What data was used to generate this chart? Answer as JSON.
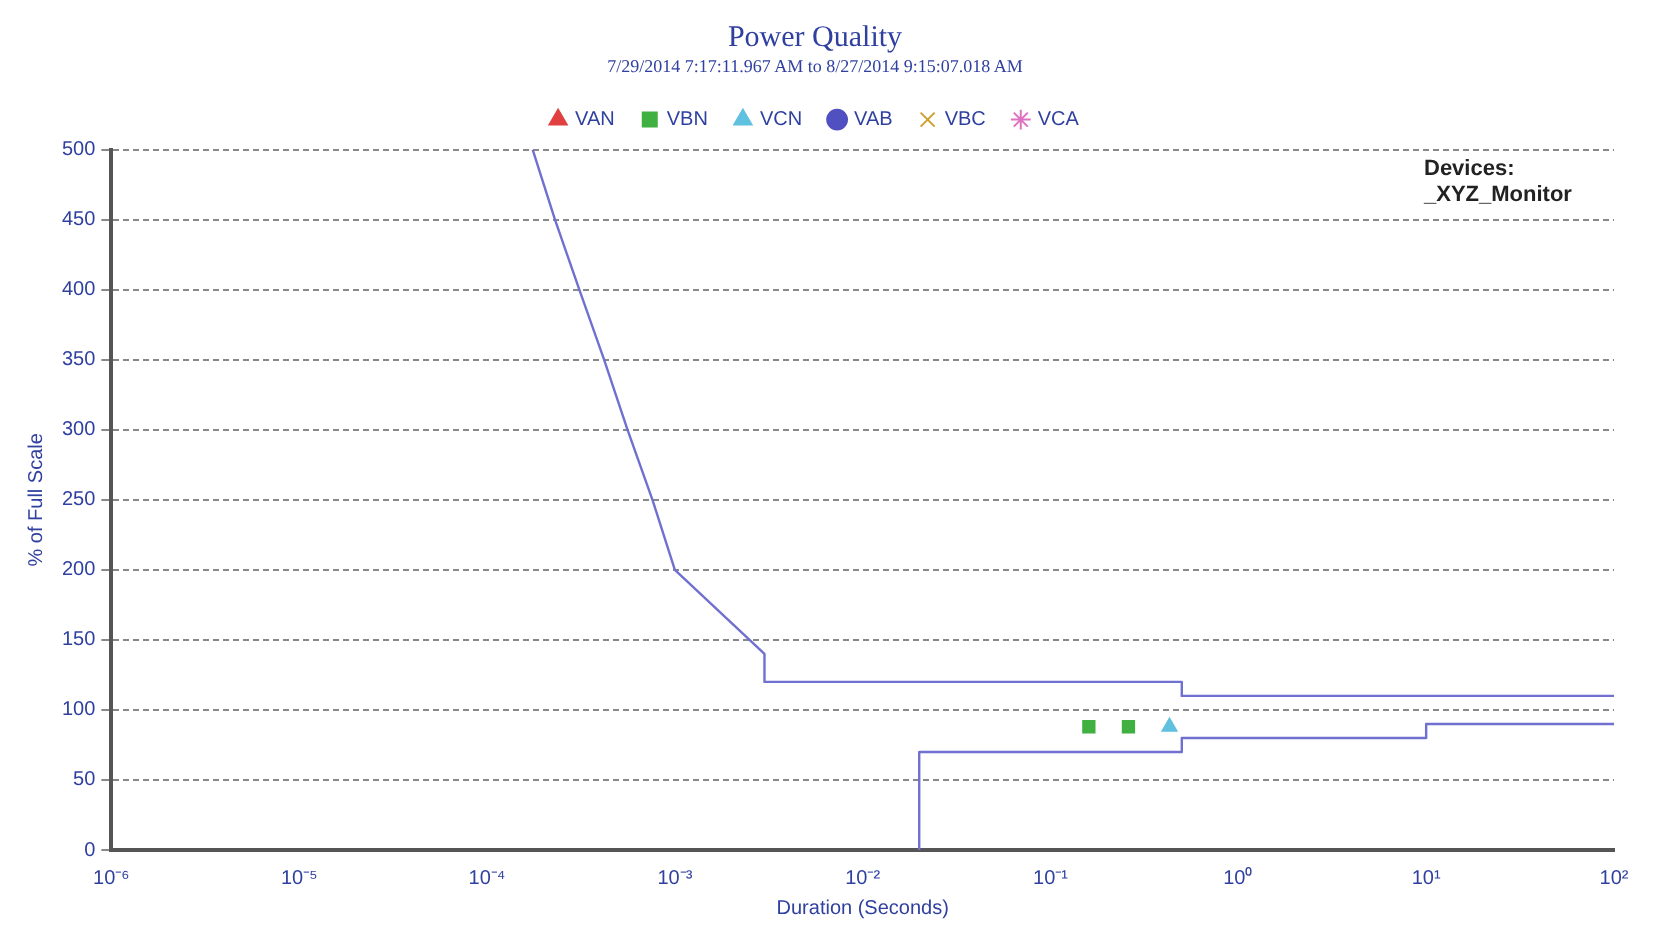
{
  "chart_data": {
    "type": "line",
    "title": "Power Quality",
    "subtitle": "7/29/2014 7:17:11.967 AM to 8/27/2014 9:15:07.018 AM",
    "xlabel": "Duration (Seconds)",
    "ylabel": "% of Full Scale",
    "log": "x",
    "grid": "y",
    "legend": "top",
    "annotations": [
      "Devices:",
      "_XYZ_Monitor"
    ],
    "xlim": [
      1e-06,
      100
    ],
    "xticks": [
      {
        "value": 1e-06,
        "label": "10⁻⁶"
      },
      {
        "value": 1e-05,
        "label": "10⁻⁵"
      },
      {
        "value": 0.0001,
        "label": "10⁻⁴"
      },
      {
        "value": 0.001,
        "label": "10⁻³"
      },
      {
        "value": 0.01,
        "label": "10⁻²"
      },
      {
        "value": 0.1,
        "label": "10⁻¹"
      },
      {
        "value": 1,
        "label": "10⁰"
      },
      {
        "value": 10,
        "label": "10¹"
      },
      {
        "value": 100,
        "label": "10²"
      }
    ],
    "ylim": [
      0,
      500
    ],
    "yticks": [
      0,
      50,
      100,
      150,
      200,
      250,
      300,
      350,
      400,
      450,
      500
    ],
    "series": [
      {
        "color": "#7070d0",
        "marker": "none",
        "line_style": "solid",
        "x": [
          0.000175,
          0.00023,
          0.00031,
          0.00042,
          0.00056,
          0.00076,
          0.001,
          0.003,
          0.003,
          0.5,
          0.5,
          100
        ],
        "values": [
          500,
          450,
          400,
          350,
          300,
          250,
          200,
          140,
          120,
          120,
          110,
          110
        ]
      },
      {
        "color": "#7070d0",
        "marker": "none",
        "line_style": "solid",
        "x": [
          0.02,
          0.02,
          0.5,
          0.5,
          10,
          10,
          100
        ],
        "values": [
          0,
          70,
          70,
          80,
          80,
          90,
          90
        ]
      },
      {
        "type": "scatter",
        "name": "VAN",
        "color": "#e04040",
        "marker": "triangle"
      },
      {
        "type": "scatter",
        "name": "VBN",
        "color": "#40b040",
        "marker": "square",
        "x": [
          0.16,
          0.26
        ],
        "values": [
          88,
          88
        ]
      },
      {
        "type": "scatter",
        "name": "VCN",
        "color": "#60c0e0",
        "marker": "triangle",
        "x": [
          0.43
        ],
        "values": [
          88
        ]
      },
      {
        "type": "scatter",
        "name": "VAB",
        "color": "#5050c0",
        "marker": "circle"
      },
      {
        "type": "scatter",
        "name": "VBC",
        "color": "#d0a030",
        "marker": "cross"
      },
      {
        "type": "scatter",
        "name": "VCA",
        "color": "#e070c0",
        "marker": "star"
      }
    ]
  }
}
